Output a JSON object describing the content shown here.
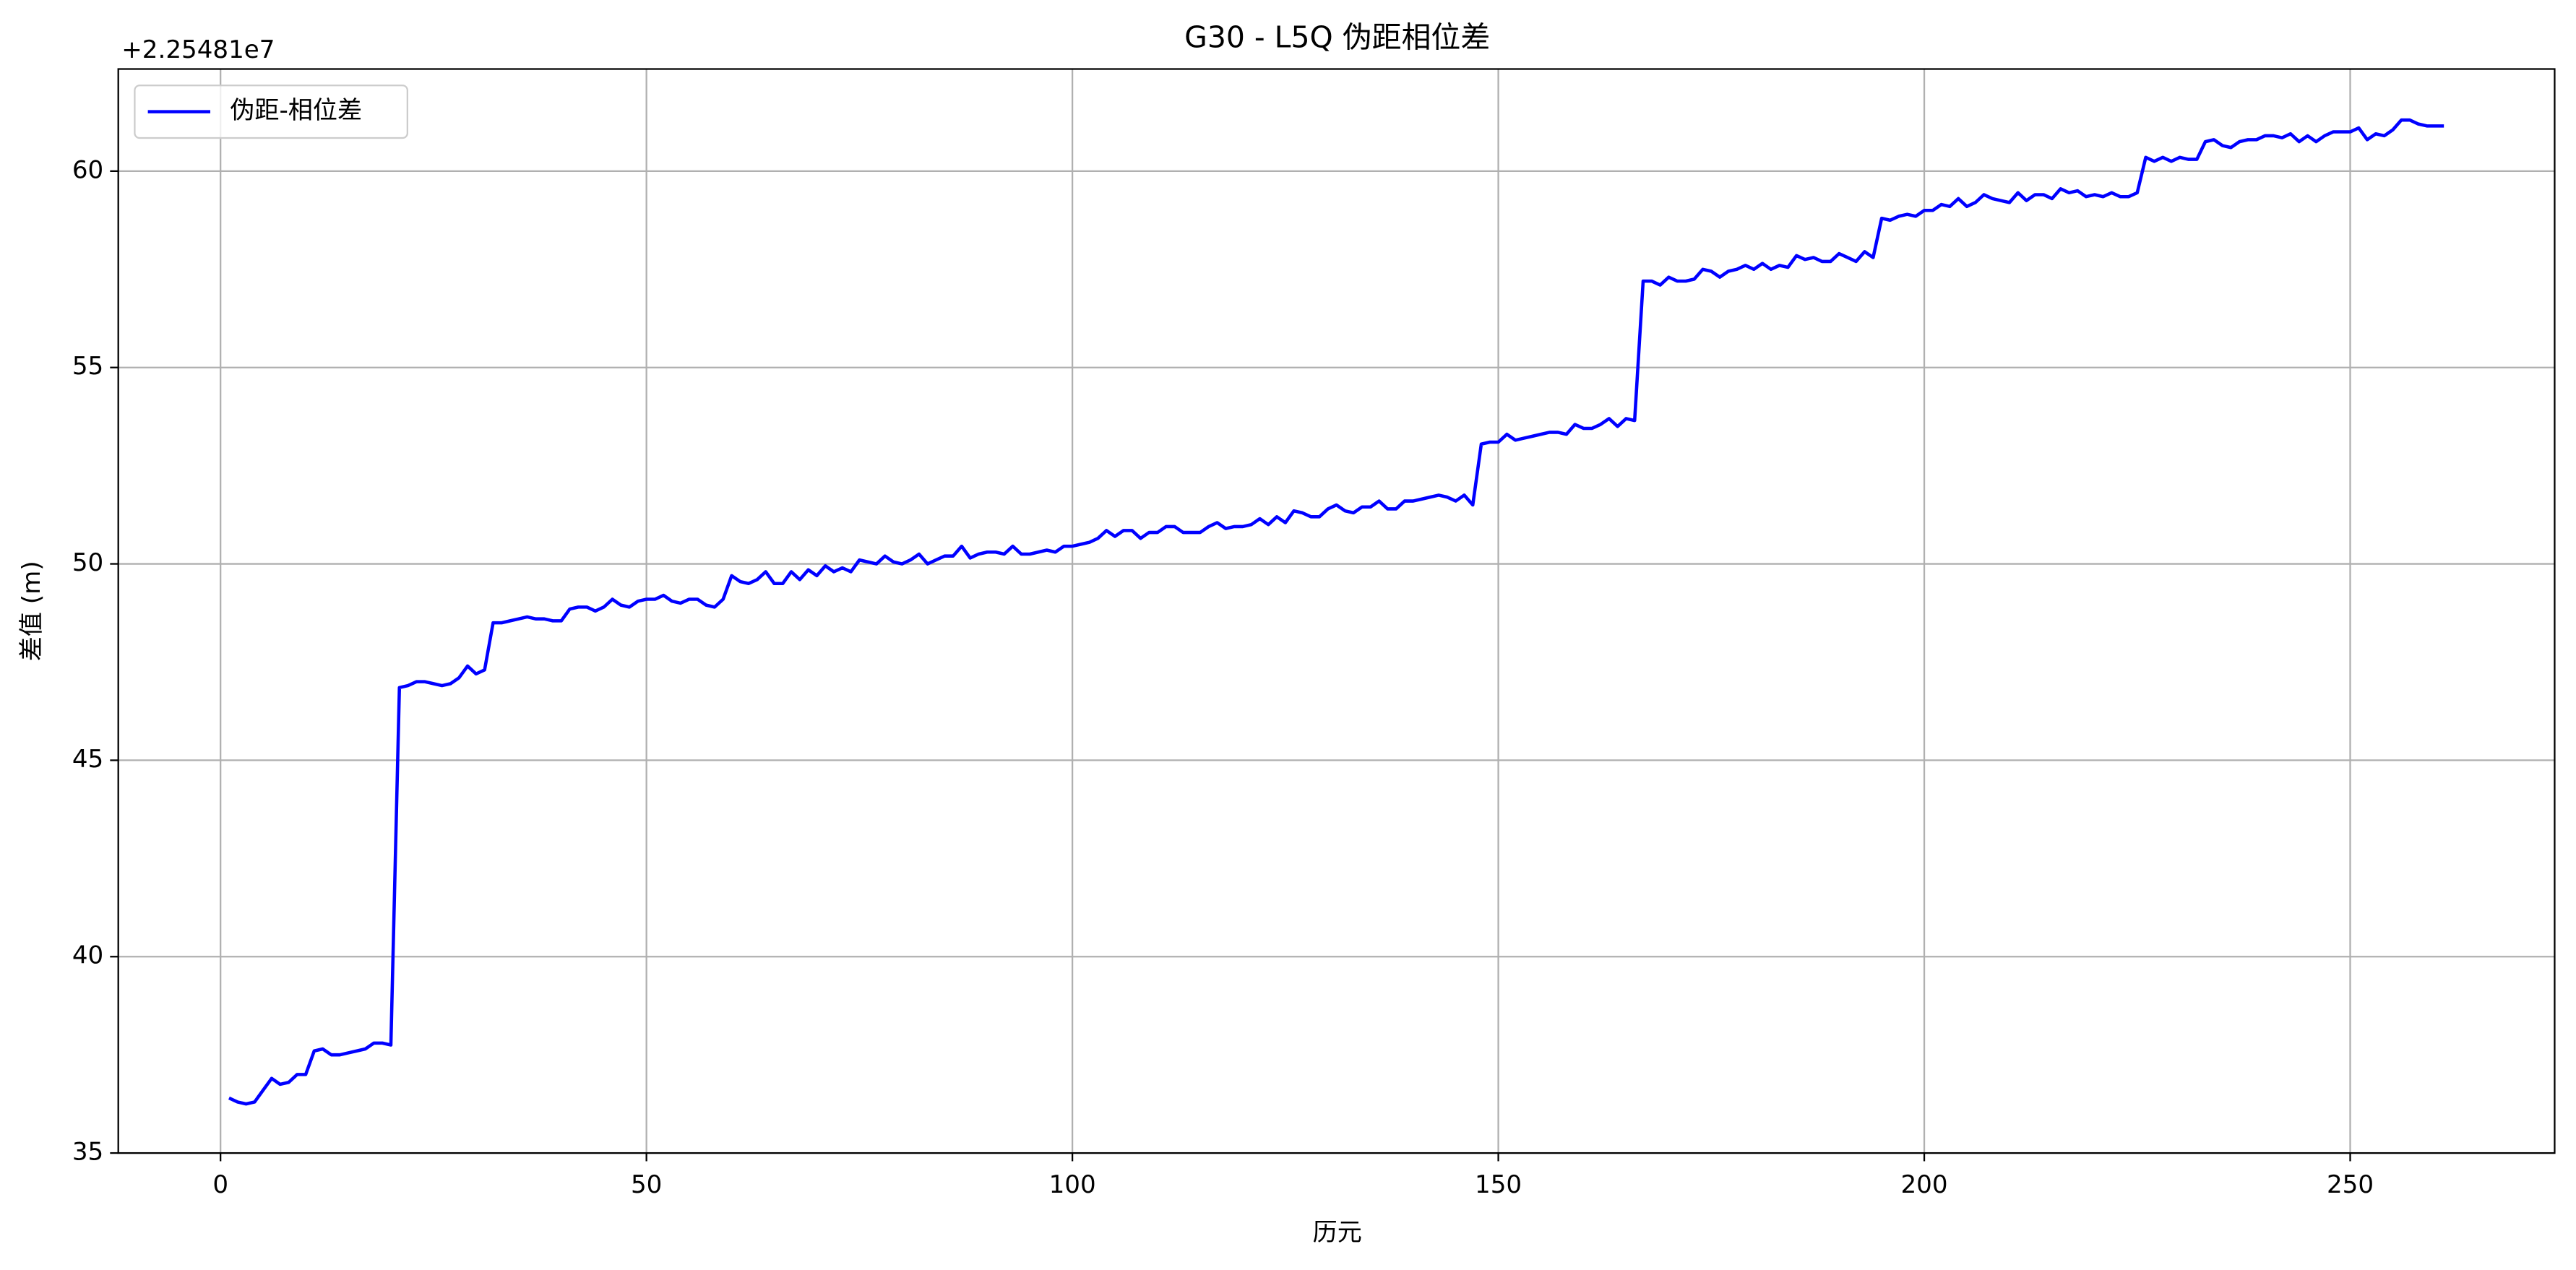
{
  "chart_data": {
    "type": "line",
    "title": "G30 - L5Q 伪距相位差",
    "x_label": "历元",
    "y_label": "差值 (m)",
    "y_offset_label": "+2.25481e7",
    "x": [
      1,
      2,
      3,
      4,
      5,
      6,
      7,
      8,
      9,
      10,
      11,
      12,
      13,
      14,
      15,
      16,
      17,
      18,
      19,
      20,
      21,
      22,
      23,
      24,
      25,
      26,
      27,
      28,
      29,
      30,
      31,
      32,
      33,
      34,
      35,
      36,
      37,
      38,
      39,
      40,
      41,
      42,
      43,
      44,
      45,
      46,
      47,
      48,
      49,
      50,
      51,
      52,
      53,
      54,
      55,
      56,
      57,
      58,
      59,
      60,
      61,
      62,
      63,
      64,
      65,
      66,
      67,
      68,
      69,
      70,
      71,
      72,
      73,
      74,
      75,
      76,
      77,
      78,
      79,
      80,
      81,
      82,
      83,
      84,
      85,
      86,
      87,
      88,
      89,
      90,
      91,
      92,
      93,
      94,
      95,
      96,
      97,
      98,
      99,
      100,
      101,
      102,
      103,
      104,
      105,
      106,
      107,
      108,
      109,
      110,
      111,
      112,
      113,
      114,
      115,
      116,
      117,
      118,
      119,
      120,
      121,
      122,
      123,
      124,
      125,
      126,
      127,
      128,
      129,
      130,
      131,
      132,
      133,
      134,
      135,
      136,
      137,
      138,
      139,
      140,
      141,
      142,
      143,
      144,
      145,
      146,
      147,
      148,
      149,
      150,
      151,
      152,
      153,
      154,
      155,
      156,
      157,
      158,
      159,
      160,
      161,
      162,
      163,
      164,
      165,
      166,
      167,
      168,
      169,
      170,
      171,
      172,
      173,
      174,
      175,
      176,
      177,
      178,
      179,
      180,
      181,
      182,
      183,
      184,
      185,
      186,
      187,
      188,
      189,
      190,
      191,
      192,
      193,
      194,
      195,
      196,
      197,
      198,
      199,
      200,
      201,
      202,
      203,
      204,
      205,
      206,
      207,
      208,
      209,
      210,
      211,
      212,
      213,
      214,
      215,
      216,
      217,
      218,
      219,
      220,
      221,
      222,
      223,
      224,
      225,
      226,
      227,
      228,
      229,
      230,
      231,
      232,
      233,
      234,
      235,
      236,
      237,
      238,
      239,
      240,
      241,
      242,
      243,
      244,
      245,
      246,
      247,
      248,
      249,
      250,
      251,
      252,
      253,
      254,
      255,
      256,
      257,
      258,
      259,
      260,
      261
    ],
    "series": [
      {
        "name": "伪距-相位差",
        "color": "#0000ff",
        "values": [
          36.4,
          36.3,
          36.25,
          36.3,
          36.6,
          36.9,
          36.75,
          36.8,
          37.0,
          37.0,
          37.6,
          37.65,
          37.5,
          37.5,
          37.55,
          37.6,
          37.65,
          37.8,
          37.8,
          37.75,
          46.85,
          46.9,
          47.0,
          47.0,
          46.95,
          46.9,
          46.95,
          47.1,
          47.4,
          47.2,
          47.3,
          48.5,
          48.5,
          48.55,
          48.6,
          48.65,
          48.6,
          48.6,
          48.55,
          48.55,
          48.85,
          48.9,
          48.9,
          48.8,
          48.9,
          49.1,
          48.95,
          48.9,
          49.05,
          49.1,
          49.1,
          49.2,
          49.05,
          49.0,
          49.1,
          49.1,
          48.95,
          48.9,
          49.1,
          49.7,
          49.55,
          49.5,
          49.6,
          49.8,
          49.5,
          49.5,
          49.8,
          49.6,
          49.85,
          49.7,
          49.95,
          49.8,
          49.9,
          49.8,
          50.1,
          50.05,
          50.0,
          50.2,
          50.05,
          50.0,
          50.1,
          50.25,
          50.0,
          50.1,
          50.2,
          50.2,
          50.45,
          50.15,
          50.25,
          50.3,
          50.3,
          50.25,
          50.45,
          50.25,
          50.25,
          50.3,
          50.35,
          50.3,
          50.45,
          50.45,
          50.5,
          50.55,
          50.65,
          50.85,
          50.7,
          50.85,
          50.85,
          50.65,
          50.8,
          50.8,
          50.95,
          50.95,
          50.8,
          50.8,
          50.8,
          50.95,
          51.05,
          50.9,
          50.95,
          50.95,
          51.0,
          51.15,
          51.0,
          51.2,
          51.05,
          51.35,
          51.3,
          51.2,
          51.2,
          51.4,
          51.5,
          51.35,
          51.3,
          51.45,
          51.45,
          51.6,
          51.4,
          51.4,
          51.6,
          51.6,
          51.65,
          51.7,
          51.75,
          51.7,
          51.6,
          51.75,
          51.5,
          53.05,
          53.1,
          53.1,
          53.3,
          53.15,
          53.2,
          53.25,
          53.3,
          53.35,
          53.35,
          53.3,
          53.55,
          53.45,
          53.45,
          53.55,
          53.7,
          53.5,
          53.7,
          53.65,
          57.2,
          57.2,
          57.1,
          57.3,
          57.2,
          57.2,
          57.25,
          57.5,
          57.45,
          57.3,
          57.45,
          57.5,
          57.6,
          57.5,
          57.65,
          57.5,
          57.6,
          57.55,
          57.85,
          57.75,
          57.8,
          57.7,
          57.7,
          57.9,
          57.8,
          57.7,
          57.95,
          57.8,
          58.8,
          58.75,
          58.85,
          58.9,
          58.85,
          59.0,
          59.0,
          59.15,
          59.1,
          59.3,
          59.1,
          59.2,
          59.4,
          59.3,
          59.25,
          59.2,
          59.45,
          59.25,
          59.4,
          59.4,
          59.3,
          59.55,
          59.45,
          59.5,
          59.35,
          59.4,
          59.35,
          59.45,
          59.35,
          59.35,
          59.45,
          60.35,
          60.25,
          60.35,
          60.25,
          60.35,
          60.3,
          60.3,
          60.75,
          60.8,
          60.65,
          60.6,
          60.75,
          60.8,
          60.8,
          60.9,
          60.9,
          60.85,
          60.95,
          60.75,
          60.9,
          60.75,
          60.9,
          61.0,
          61.0,
          61.0,
          61.1,
          60.8,
          60.95,
          60.9,
          61.05,
          61.3,
          61.3,
          61.2,
          61.15,
          61.15,
          61.15
        ]
      }
    ],
    "xlim": [
      -12,
      274
    ],
    "ylim": [
      35.0,
      62.6
    ],
    "xticks": [
      0,
      50,
      100,
      150,
      200,
      250
    ],
    "yticks": [
      35,
      40,
      45,
      50,
      55,
      60
    ],
    "grid": true,
    "legend": "upper left"
  }
}
